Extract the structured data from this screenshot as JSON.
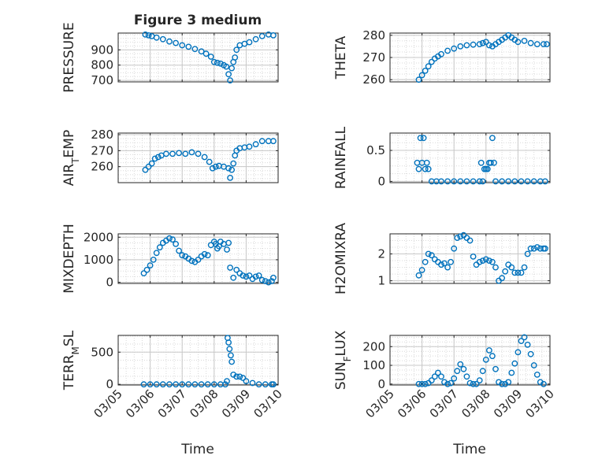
{
  "figure": {
    "title": "Figure 3 medium",
    "xlabel": "Time"
  },
  "style": {
    "marker_color": "#0072bd",
    "axis_color": "#262626",
    "grid_color": "#d9d9d9"
  },
  "chart_data": [
    {
      "type": "scatter",
      "ylabel": "PRESSURE",
      "xlim": [
        0,
        5
      ],
      "ylim": [
        690,
        1010
      ],
      "yticks": [
        700,
        800,
        900
      ],
      "x": [
        0.85,
        0.95,
        1.05,
        1.2,
        1.4,
        1.6,
        1.8,
        2.0,
        2.2,
        2.4,
        2.6,
        2.75,
        2.9,
        3.0,
        3.1,
        3.2,
        3.3,
        3.38,
        3.45,
        3.5,
        3.55,
        3.6,
        3.65,
        3.7,
        3.8,
        3.95,
        4.1,
        4.3,
        4.5,
        4.7,
        4.85
      ],
      "y": [
        1000,
        995,
        990,
        980,
        970,
        955,
        945,
        930,
        920,
        905,
        890,
        875,
        855,
        820,
        815,
        810,
        800,
        790,
        740,
        700,
        780,
        820,
        850,
        900,
        930,
        940,
        950,
        970,
        990,
        1000,
        995
      ]
    },
    {
      "type": "scatter",
      "ylabel": "THETA",
      "xlim": [
        0,
        5
      ],
      "ylim": [
        259,
        281
      ],
      "yticks": [
        260,
        270,
        280
      ],
      "x": [
        0.9,
        1.0,
        1.1,
        1.2,
        1.3,
        1.4,
        1.5,
        1.6,
        1.8,
        2.0,
        2.2,
        2.4,
        2.6,
        2.8,
        2.9,
        3.0,
        3.1,
        3.2,
        3.3,
        3.4,
        3.5,
        3.6,
        3.7,
        3.8,
        3.9,
        4.0,
        4.2,
        4.4,
        4.6,
        4.8,
        4.9
      ],
      "y": [
        260,
        262,
        264,
        266,
        268,
        269.5,
        270.5,
        271.5,
        273,
        274,
        275,
        275.5,
        275.8,
        276,
        276.5,
        277,
        275.5,
        275,
        276,
        277,
        278,
        279,
        280,
        279,
        278,
        277,
        277.5,
        276.5,
        276,
        276,
        276
      ]
    },
    {
      "type": "scatter",
      "ylabel": "AIR_TEMP",
      "xlim": [
        0,
        5
      ],
      "ylim": [
        250,
        281
      ],
      "yticks": [
        260,
        270,
        280
      ],
      "x": [
        0.85,
        0.95,
        1.05,
        1.15,
        1.25,
        1.35,
        1.5,
        1.7,
        1.9,
        2.1,
        2.3,
        2.5,
        2.7,
        2.85,
        2.95,
        3.05,
        3.15,
        3.3,
        3.45,
        3.5,
        3.55,
        3.6,
        3.65,
        3.7,
        3.8,
        3.95,
        4.1,
        4.3,
        4.5,
        4.7,
        4.85
      ],
      "y": [
        258,
        260,
        262,
        265,
        266,
        267,
        268,
        268,
        268.5,
        268,
        269,
        268,
        266,
        263,
        259,
        260,
        260.5,
        260,
        259,
        253,
        258,
        262,
        267,
        270,
        271.5,
        272,
        272.5,
        274,
        276,
        276,
        276
      ]
    },
    {
      "type": "scatter",
      "ylabel": "RAINFALL",
      "xlim": [
        0,
        5
      ],
      "ylim": [
        -0.02,
        0.78
      ],
      "yticks": [
        0,
        0.5
      ],
      "x": [
        0.85,
        0.9,
        0.95,
        1.0,
        1.05,
        1.1,
        1.15,
        1.2,
        1.3,
        1.45,
        1.6,
        1.8,
        2.0,
        2.2,
        2.4,
        2.6,
        2.8,
        2.85,
        2.9,
        2.95,
        3.0,
        3.05,
        3.1,
        3.15,
        3.2,
        3.25,
        3.3,
        3.5,
        3.7,
        3.9,
        4.1,
        4.3,
        4.5,
        4.7,
        4.85
      ],
      "y": [
        0.3,
        0.2,
        0.7,
        0.3,
        0.7,
        0.2,
        0.3,
        0.2,
        0,
        0,
        0,
        0,
        0,
        0,
        0,
        0,
        0,
        0.3,
        0,
        0.2,
        0.2,
        0.2,
        0.3,
        0.3,
        0.7,
        0.3,
        0,
        0,
        0,
        0,
        0,
        0,
        0,
        0,
        0
      ]
    },
    {
      "type": "scatter",
      "ylabel": "MIXDEPTH",
      "xlim": [
        0,
        5
      ],
      "ylim": [
        -50,
        2150
      ],
      "yticks": [
        0,
        1000,
        2000
      ],
      "x": [
        0.8,
        0.9,
        1.0,
        1.1,
        1.2,
        1.3,
        1.4,
        1.5,
        1.6,
        1.7,
        1.8,
        1.9,
        2.0,
        2.1,
        2.2,
        2.3,
        2.4,
        2.5,
        2.6,
        2.7,
        2.8,
        2.9,
        3.0,
        3.05,
        3.1,
        3.15,
        3.2,
        3.3,
        3.4,
        3.45,
        3.5,
        3.6,
        3.7,
        3.8,
        3.9,
        4.0,
        4.1,
        4.2,
        4.3,
        4.4,
        4.5,
        4.6,
        4.7,
        4.8,
        4.85
      ],
      "y": [
        400,
        550,
        750,
        1000,
        1300,
        1550,
        1750,
        1850,
        1950,
        1900,
        1700,
        1400,
        1200,
        1150,
        1050,
        950,
        900,
        1000,
        1150,
        1250,
        1200,
        1650,
        1800,
        1700,
        1500,
        1600,
        1800,
        1700,
        1450,
        1750,
        650,
        200,
        550,
        400,
        300,
        250,
        300,
        150,
        250,
        300,
        100,
        50,
        0,
        50,
        200
      ]
    },
    {
      "type": "scatter",
      "ylabel": "H2OMIXRA",
      "xlim": [
        0,
        5
      ],
      "ylim": [
        0.9,
        2.75
      ],
      "yticks": [
        1,
        2
      ],
      "x": [
        0.9,
        1.0,
        1.1,
        1.2,
        1.3,
        1.4,
        1.5,
        1.6,
        1.7,
        1.8,
        1.9,
        2.0,
        2.1,
        2.2,
        2.3,
        2.4,
        2.5,
        2.6,
        2.7,
        2.8,
        2.9,
        3.0,
        3.1,
        3.2,
        3.3,
        3.4,
        3.5,
        3.6,
        3.7,
        3.8,
        3.9,
        4.0,
        4.1,
        4.2,
        4.3,
        4.4,
        4.5,
        4.6,
        4.7,
        4.8,
        4.85
      ],
      "y": [
        1.2,
        1.4,
        1.7,
        2.0,
        1.95,
        1.8,
        1.7,
        1.6,
        1.65,
        1.5,
        1.7,
        2.2,
        2.6,
        2.65,
        2.7,
        2.6,
        2.5,
        1.9,
        1.6,
        1.7,
        1.75,
        1.8,
        1.75,
        1.7,
        1.5,
        1.0,
        1.1,
        1.35,
        1.6,
        1.5,
        1.3,
        1.3,
        1.3,
        1.5,
        2.0,
        2.2,
        2.2,
        2.25,
        2.2,
        2.2,
        2.2
      ]
    },
    {
      "type": "scatter",
      "ylabel": "TERR_MSL",
      "xlim": [
        0,
        5
      ],
      "ylim": [
        -10,
        760
      ],
      "yticks": [
        0,
        500
      ],
      "x": [
        0.8,
        1.0,
        1.2,
        1.4,
        1.6,
        1.8,
        2.0,
        2.2,
        2.4,
        2.6,
        2.8,
        3.0,
        3.2,
        3.35,
        3.4,
        3.42,
        3.45,
        3.48,
        3.52,
        3.55,
        3.6,
        3.7,
        3.8,
        3.9,
        4.0,
        4.2,
        4.4,
        4.6,
        4.8,
        4.85
      ],
      "y": [
        0,
        0,
        0,
        0,
        0,
        0,
        0,
        0,
        0,
        0,
        0,
        0,
        0,
        0,
        50,
        720,
        650,
        550,
        450,
        350,
        150,
        120,
        120,
        100,
        50,
        20,
        0,
        0,
        0,
        0
      ]
    },
    {
      "type": "scatter",
      "ylabel": "SUN_FLUX",
      "xlim": [
        0,
        5
      ],
      "ylim": [
        -5,
        260
      ],
      "yticks": [
        0,
        100,
        200
      ],
      "xticks": [
        0,
        1,
        2,
        3,
        4,
        5
      ],
      "xticklabels": [
        "03/05",
        "03/06",
        "03/07",
        "03/08",
        "03/09",
        "03/10"
      ],
      "x": [
        0.9,
        1.0,
        1.1,
        1.2,
        1.3,
        1.4,
        1.5,
        1.6,
        1.7,
        1.8,
        1.9,
        2.0,
        2.1,
        2.2,
        2.3,
        2.4,
        2.5,
        2.6,
        2.7,
        2.8,
        2.9,
        3.0,
        3.1,
        3.2,
        3.3,
        3.4,
        3.5,
        3.6,
        3.7,
        3.8,
        3.9,
        4.0,
        4.1,
        4.2,
        4.3,
        4.4,
        4.5,
        4.6,
        4.7,
        4.8
      ],
      "y": [
        0,
        0,
        0,
        5,
        20,
        40,
        60,
        40,
        10,
        0,
        5,
        30,
        70,
        105,
        80,
        40,
        5,
        0,
        0,
        20,
        70,
        130,
        180,
        150,
        80,
        10,
        0,
        0,
        10,
        60,
        110,
        170,
        230,
        250,
        210,
        160,
        100,
        50,
        10,
        0
      ]
    }
  ]
}
